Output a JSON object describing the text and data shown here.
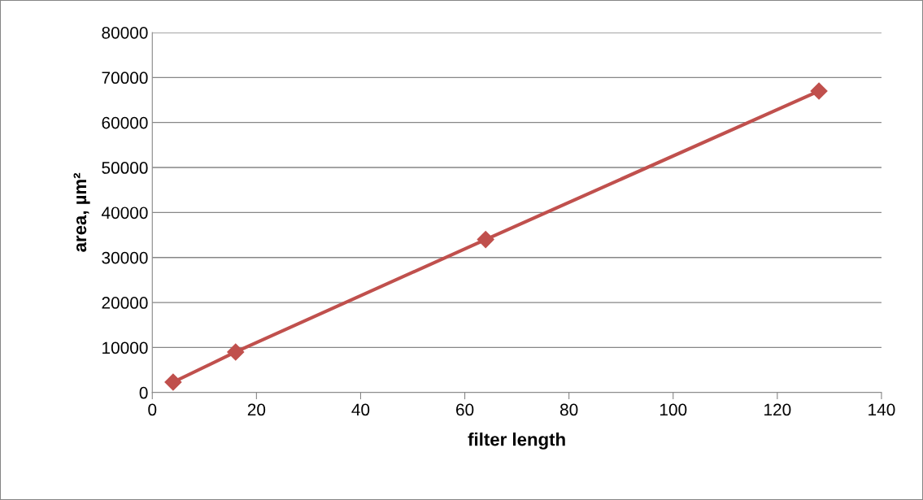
{
  "chart_data": {
    "type": "line",
    "xlabel": "filter length",
    "ylabel": "area, µm²",
    "x": [
      4,
      16,
      64,
      128
    ],
    "series": [
      {
        "color": "#c0504d",
        "values": [
          2300,
          9000,
          34000,
          67000
        ]
      }
    ],
    "xlim": [
      0,
      140
    ],
    "xticks": [
      0,
      20,
      40,
      60,
      80,
      100,
      120,
      140
    ],
    "ylim": [
      0,
      80000
    ],
    "yticks": [
      0,
      10000,
      20000,
      30000,
      40000,
      50000,
      60000,
      70000,
      80000
    ],
    "grid": "y",
    "marker": "diamond",
    "line_style": "solid",
    "legend": false
  }
}
